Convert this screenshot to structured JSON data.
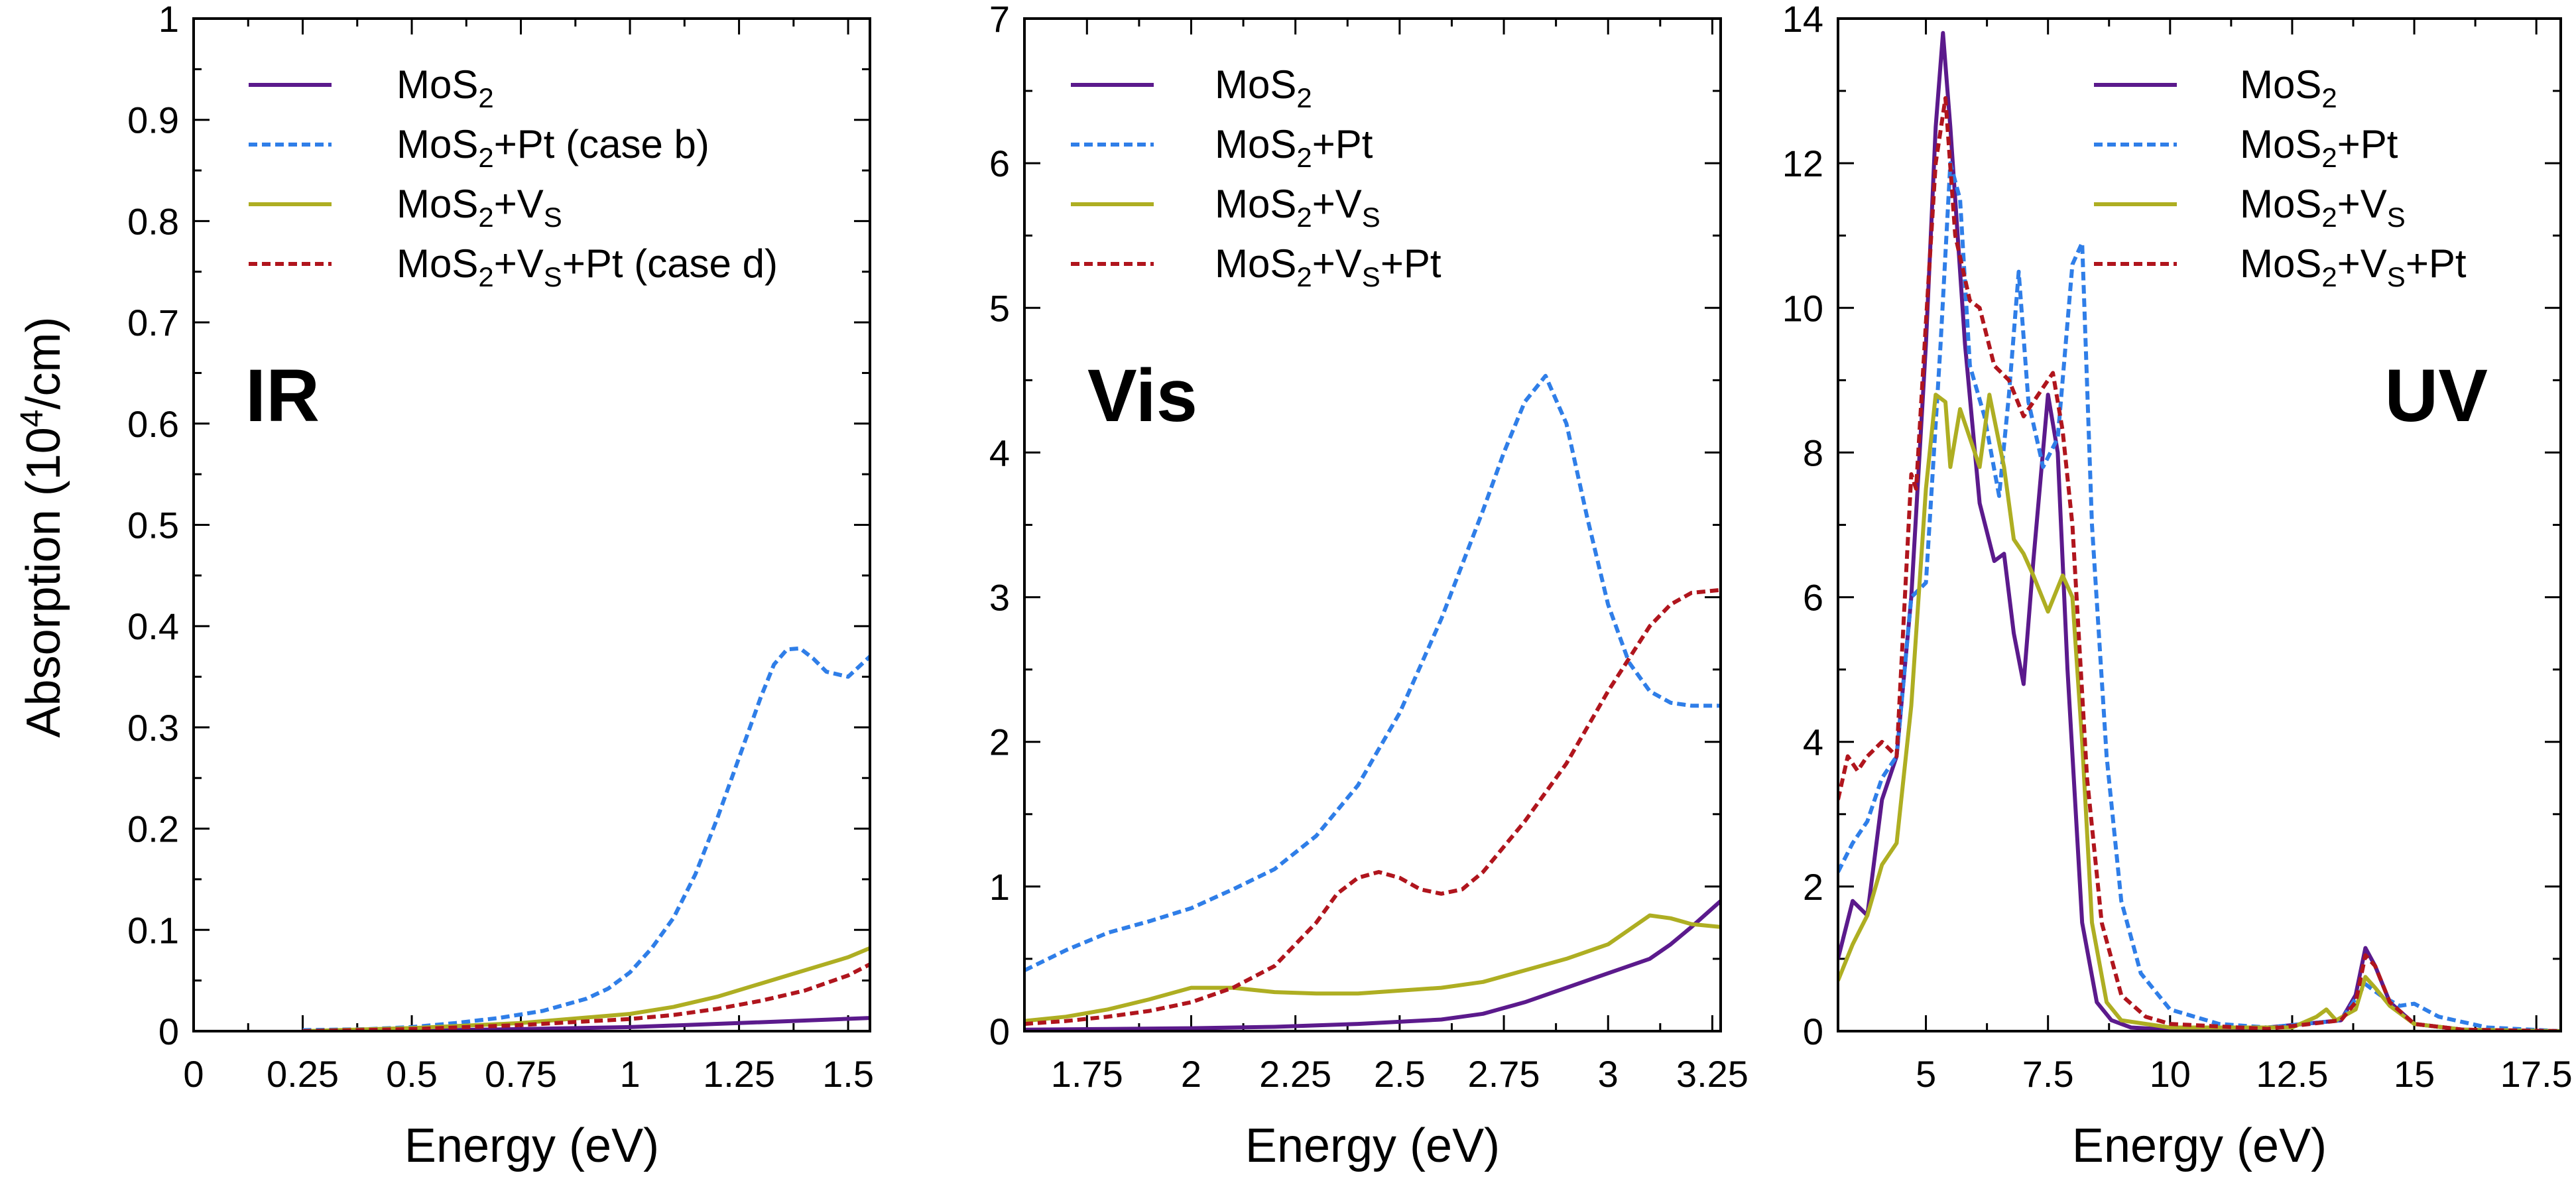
{
  "figure": {
    "ylabel": "Absorption (10",
    "ylabel_sup": "4",
    "ylabel_tail": "/cm)"
  },
  "series_styles": {
    "mos2": {
      "color": "#5b1a8c",
      "dash": "solid"
    },
    "pt": {
      "color": "#2f7ee8",
      "dash": "dashed"
    },
    "vs": {
      "color": "#aeae22",
      "dash": "solid"
    },
    "vspt": {
      "color": "#b0151d",
      "dash": "dashed"
    }
  },
  "chart_data": [
    {
      "type": "line",
      "panel_label": "IR",
      "xlabel": "Energy (eV)",
      "xlim": [
        0,
        1.55
      ],
      "ylim": [
        0,
        1.0
      ],
      "xticks": [
        0,
        0.25,
        0.5,
        0.75,
        1,
        1.25,
        1.5
      ],
      "xtick_labels": [
        "0",
        "0.25",
        "0.5",
        "0.75",
        "1",
        "1.25",
        "1.5"
      ],
      "yticks": [
        0,
        0.1,
        0.2,
        0.3,
        0.4,
        0.5,
        0.6,
        0.7,
        0.8,
        0.9,
        1
      ],
      "ytick_labels": [
        "0",
        "0.1",
        "0.2",
        "0.3",
        "0.4",
        "0.5",
        "0.6",
        "0.7",
        "0.8",
        "0.9",
        "1"
      ],
      "legend": [
        {
          "key": "mos2",
          "base": "MoS",
          "sub": "2",
          "mid": "",
          "sub2": "",
          "tail": ""
        },
        {
          "key": "pt",
          "base": "MoS",
          "sub": "2",
          "mid": "+Pt (case b)",
          "sub2": "",
          "tail": ""
        },
        {
          "key": "vs",
          "base": "MoS",
          "sub": "2",
          "mid": "+V",
          "sub2": "S",
          "tail": ""
        },
        {
          "key": "vspt",
          "base": "MoS",
          "sub": "2",
          "mid": "+V",
          "sub2": "S",
          "tail": "+Pt (case d)"
        }
      ],
      "series": [
        {
          "key": "mos2",
          "x": [
            0.25,
            0.5,
            0.75,
            1.0,
            1.25,
            1.55
          ],
          "y": [
            0,
            0.0005,
            0.002,
            0.004,
            0.008,
            0.013
          ]
        },
        {
          "key": "pt",
          "x": [
            0.25,
            0.4,
            0.5,
            0.6,
            0.7,
            0.8,
            0.9,
            0.95,
            1.0,
            1.05,
            1.1,
            1.15,
            1.2,
            1.25,
            1.3,
            1.33,
            1.36,
            1.39,
            1.42,
            1.45,
            1.5,
            1.55
          ],
          "y": [
            0.001,
            0.002,
            0.004,
            0.008,
            0.013,
            0.02,
            0.032,
            0.042,
            0.058,
            0.082,
            0.112,
            0.155,
            0.21,
            0.27,
            0.33,
            0.362,
            0.377,
            0.378,
            0.368,
            0.355,
            0.35,
            0.37
          ]
        },
        {
          "key": "vs",
          "x": [
            0.25,
            0.5,
            0.75,
            1.0,
            1.1,
            1.2,
            1.3,
            1.4,
            1.5,
            1.55
          ],
          "y": [
            0,
            0.003,
            0.008,
            0.017,
            0.024,
            0.034,
            0.047,
            0.06,
            0.073,
            0.082
          ]
        },
        {
          "key": "vspt",
          "x": [
            0.25,
            0.5,
            0.75,
            1.0,
            1.1,
            1.2,
            1.3,
            1.4,
            1.5,
            1.55
          ],
          "y": [
            0,
            0.002,
            0.006,
            0.012,
            0.016,
            0.022,
            0.03,
            0.04,
            0.055,
            0.066
          ]
        }
      ]
    },
    {
      "type": "line",
      "panel_label": "Vis",
      "xlabel": "Energy (eV)",
      "xlim": [
        1.6,
        3.27
      ],
      "ylim": [
        0,
        7
      ],
      "xticks": [
        1.75,
        2,
        2.25,
        2.5,
        2.75,
        3,
        3.25
      ],
      "xtick_labels": [
        "1.75",
        "2",
        "2.25",
        "2.5",
        "2.75",
        "3",
        "3.25"
      ],
      "yticks": [
        0,
        1,
        2,
        3,
        4,
        5,
        6,
        7
      ],
      "ytick_labels": [
        "0",
        "1",
        "2",
        "3",
        "4",
        "5",
        "6",
        "7"
      ],
      "legend": [
        {
          "key": "mos2",
          "base": "MoS",
          "sub": "2",
          "mid": "",
          "sub2": "",
          "tail": ""
        },
        {
          "key": "pt",
          "base": "MoS",
          "sub": "2",
          "mid": "+Pt",
          "sub2": "",
          "tail": ""
        },
        {
          "key": "vs",
          "base": "MoS",
          "sub": "2",
          "mid": "+V",
          "sub2": "S",
          "tail": ""
        },
        {
          "key": "vspt",
          "base": "MoS",
          "sub": "2",
          "mid": "+V",
          "sub2": "S",
          "tail": "+Pt"
        }
      ],
      "series": [
        {
          "key": "mos2",
          "x": [
            1.6,
            1.8,
            2.0,
            2.2,
            2.4,
            2.6,
            2.7,
            2.8,
            2.9,
            3.0,
            3.1,
            3.15,
            3.2,
            3.27
          ],
          "y": [
            0.01,
            0.015,
            0.02,
            0.03,
            0.05,
            0.08,
            0.12,
            0.2,
            0.3,
            0.4,
            0.5,
            0.6,
            0.72,
            0.9
          ]
        },
        {
          "key": "pt",
          "x": [
            1.6,
            1.7,
            1.8,
            1.9,
            2.0,
            2.1,
            2.2,
            2.3,
            2.4,
            2.5,
            2.6,
            2.7,
            2.75,
            2.8,
            2.85,
            2.9,
            2.95,
            3.0,
            3.05,
            3.1,
            3.15,
            3.2,
            3.27
          ],
          "y": [
            0.42,
            0.56,
            0.68,
            0.76,
            0.85,
            0.98,
            1.12,
            1.35,
            1.7,
            2.2,
            2.85,
            3.6,
            4.0,
            4.35,
            4.53,
            4.2,
            3.55,
            2.95,
            2.55,
            2.35,
            2.27,
            2.25,
            2.25
          ]
        },
        {
          "key": "vs",
          "x": [
            1.6,
            1.7,
            1.8,
            1.9,
            2.0,
            2.1,
            2.2,
            2.3,
            2.4,
            2.5,
            2.6,
            2.7,
            2.8,
            2.9,
            3.0,
            3.05,
            3.1,
            3.15,
            3.2,
            3.27
          ],
          "y": [
            0.07,
            0.1,
            0.15,
            0.22,
            0.3,
            0.3,
            0.27,
            0.26,
            0.26,
            0.28,
            0.3,
            0.34,
            0.42,
            0.5,
            0.6,
            0.7,
            0.8,
            0.78,
            0.74,
            0.72
          ]
        },
        {
          "key": "vspt",
          "x": [
            1.6,
            1.7,
            1.8,
            1.9,
            2.0,
            2.1,
            2.2,
            2.3,
            2.35,
            2.4,
            2.45,
            2.5,
            2.55,
            2.6,
            2.65,
            2.7,
            2.8,
            2.9,
            3.0,
            3.1,
            3.15,
            3.2,
            3.27
          ],
          "y": [
            0.05,
            0.07,
            0.1,
            0.14,
            0.2,
            0.3,
            0.45,
            0.75,
            0.95,
            1.06,
            1.1,
            1.06,
            0.98,
            0.95,
            0.98,
            1.1,
            1.45,
            1.85,
            2.35,
            2.8,
            2.95,
            3.03,
            3.05
          ]
        }
      ]
    },
    {
      "type": "line",
      "panel_label": "UV",
      "xlabel": "Energy (eV)",
      "xlim": [
        3.2,
        18
      ],
      "ylim": [
        0,
        14
      ],
      "xticks": [
        5,
        7.5,
        10,
        12.5,
        15,
        17.5
      ],
      "xtick_labels": [
        "5",
        "7.5",
        "10",
        "12.5",
        "15",
        "17.5"
      ],
      "yticks": [
        0,
        2,
        4,
        6,
        8,
        10,
        12,
        14
      ],
      "ytick_labels": [
        "0",
        "2",
        "4",
        "6",
        "8",
        "10",
        "12",
        "14"
      ],
      "legend": [
        {
          "key": "mos2",
          "base": "MoS",
          "sub": "2",
          "mid": "",
          "sub2": "",
          "tail": ""
        },
        {
          "key": "pt",
          "base": "MoS",
          "sub": "2",
          "mid": "+Pt",
          "sub2": "",
          "tail": ""
        },
        {
          "key": "vs",
          "base": "MoS",
          "sub": "2",
          "mid": "+V",
          "sub2": "S",
          "tail": ""
        },
        {
          "key": "vspt",
          "base": "MoS",
          "sub": "2",
          "mid": "+V",
          "sub2": "S",
          "tail": "+Pt"
        }
      ],
      "series": [
        {
          "key": "mos2",
          "x": [
            3.2,
            3.5,
            3.8,
            4.1,
            4.4,
            4.7,
            5.0,
            5.2,
            5.35,
            5.5,
            5.8,
            6.1,
            6.4,
            6.6,
            6.8,
            7.0,
            7.2,
            7.5,
            7.7,
            7.9,
            8.2,
            8.5,
            8.8,
            9.2,
            10.0,
            12.0,
            13.5,
            13.8,
            14.0,
            14.2,
            14.5,
            15.0,
            16.0,
            18.0
          ],
          "y": [
            1.0,
            1.8,
            1.6,
            3.2,
            3.8,
            6.0,
            9.5,
            12.5,
            13.8,
            12.5,
            9.5,
            7.3,
            6.5,
            6.6,
            5.5,
            4.8,
            6.5,
            8.8,
            8.0,
            5.0,
            1.5,
            0.4,
            0.15,
            0.05,
            0.02,
            0.05,
            0.15,
            0.5,
            1.15,
            0.9,
            0.4,
            0.1,
            0.02,
            0
          ]
        },
        {
          "key": "pt",
          "x": [
            3.2,
            3.5,
            3.8,
            4.1,
            4.4,
            4.7,
            5.0,
            5.3,
            5.5,
            5.7,
            5.9,
            6.2,
            6.5,
            6.7,
            6.9,
            7.1,
            7.4,
            7.7,
            8.0,
            8.2,
            8.4,
            8.7,
            9.0,
            9.4,
            10.0,
            11.0,
            12.0,
            13.5,
            14.0,
            14.3,
            14.7,
            15.0,
            15.5,
            16.5,
            18.0
          ],
          "y": [
            2.2,
            2.6,
            2.9,
            3.5,
            3.8,
            6.0,
            6.2,
            9.5,
            12.0,
            11.5,
            9.2,
            8.5,
            7.4,
            8.8,
            10.5,
            8.7,
            7.8,
            8.2,
            10.6,
            10.9,
            7.0,
            3.8,
            1.8,
            0.8,
            0.3,
            0.1,
            0.05,
            0.15,
            0.65,
            0.5,
            0.35,
            0.38,
            0.2,
            0.05,
            0
          ]
        },
        {
          "key": "vs",
          "x": [
            3.2,
            3.5,
            3.8,
            4.1,
            4.4,
            4.7,
            5.0,
            5.2,
            5.4,
            5.5,
            5.7,
            5.9,
            6.1,
            6.3,
            6.6,
            6.8,
            7.0,
            7.2,
            7.5,
            7.8,
            8.0,
            8.2,
            8.4,
            8.7,
            9.0,
            10.0,
            12.5,
            13.0,
            13.2,
            13.4,
            13.8,
            14.0,
            14.2,
            14.5,
            15.0,
            16.0,
            18.0
          ],
          "y": [
            0.7,
            1.2,
            1.6,
            2.3,
            2.6,
            4.5,
            7.5,
            8.8,
            8.7,
            7.8,
            8.6,
            8.2,
            7.8,
            8.8,
            7.8,
            6.8,
            6.6,
            6.3,
            5.8,
            6.3,
            6.0,
            4.0,
            1.5,
            0.4,
            0.15,
            0.05,
            0.05,
            0.2,
            0.3,
            0.15,
            0.3,
            0.75,
            0.6,
            0.35,
            0.1,
            0.02,
            0
          ]
        },
        {
          "key": "vspt",
          "x": [
            3.2,
            3.4,
            3.6,
            3.8,
            4.1,
            4.4,
            4.7,
            4.8,
            5.0,
            5.2,
            5.4,
            5.6,
            5.9,
            6.1,
            6.4,
            6.7,
            7.0,
            7.3,
            7.6,
            7.8,
            8.0,
            8.3,
            8.6,
            9.0,
            9.5,
            10.0,
            12.0,
            13.5,
            13.8,
            14.0,
            14.2,
            14.5,
            15.0,
            16.0,
            18.0
          ],
          "y": [
            3.2,
            3.8,
            3.6,
            3.8,
            4.0,
            3.8,
            7.7,
            7.5,
            9.8,
            12.0,
            12.9,
            11.0,
            10.1,
            10.0,
            9.2,
            9.0,
            8.5,
            8.8,
            9.1,
            8.3,
            7.0,
            3.5,
            1.5,
            0.5,
            0.2,
            0.1,
            0.03,
            0.15,
            0.4,
            1.05,
            0.9,
            0.4,
            0.1,
            0.02,
            0
          ]
        }
      ]
    }
  ]
}
